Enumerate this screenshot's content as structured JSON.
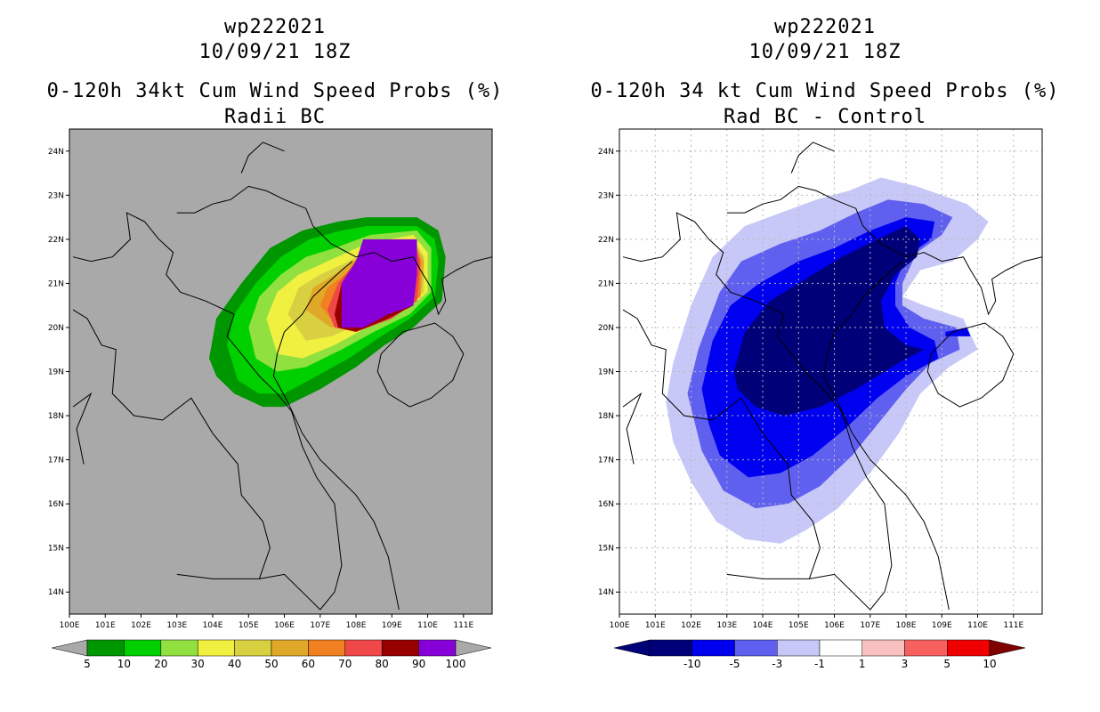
{
  "left_panel": {
    "storm_id": "wp222021",
    "datetime": "10/09/21 18Z",
    "product": "0-120h 34kt Cum Wind Speed Probs (%)",
    "subtitle": "Radii BC",
    "colors": {
      "background": "#a9a9a9"
    },
    "colorbar": {
      "labels": [
        "5",
        "10",
        "20",
        "30",
        "40",
        "50",
        "60",
        "70",
        "80",
        "90",
        "100"
      ],
      "colors": [
        "#009600",
        "#00d000",
        "#90e040",
        "#f0f040",
        "#d8d040",
        "#e0a828",
        "#f08020",
        "#f04848",
        "#980000",
        "#8800d8"
      ],
      "under_color": "#a9a9a9",
      "over_color": "#a9a9a9"
    }
  },
  "right_panel": {
    "storm_id": "wp222021",
    "datetime": "10/09/21 18Z",
    "product": "0-120h 34 kt Cum Wind Speed Probs (%)",
    "subtitle": "Rad BC - Control",
    "colors": {
      "background": "#ffffff"
    },
    "colorbar": {
      "labels": [
        "-10",
        "-5",
        "-3",
        "-1",
        "1",
        "3",
        "5",
        "10"
      ],
      "colors": [
        "#000078",
        "#0000f0",
        "#6060f0",
        "#c8c8f8",
        "#ffffff",
        "#f8c0c0",
        "#f86060",
        "#f00000"
      ],
      "under_color": "#000078",
      "over_color": "#800000"
    }
  },
  "axes": {
    "lon_labels": [
      "100E",
      "101E",
      "102E",
      "103E",
      "104E",
      "105E",
      "106E",
      "107E",
      "108E",
      "109E",
      "110E",
      "111E"
    ],
    "lat_labels": [
      "14N",
      "15N",
      "16N",
      "17N",
      "18N",
      "19N",
      "20N",
      "21N",
      "22N",
      "23N",
      "24N"
    ],
    "lon_range": [
      100,
      111.8
    ],
    "lat_range": [
      13.5,
      24.5
    ]
  }
}
